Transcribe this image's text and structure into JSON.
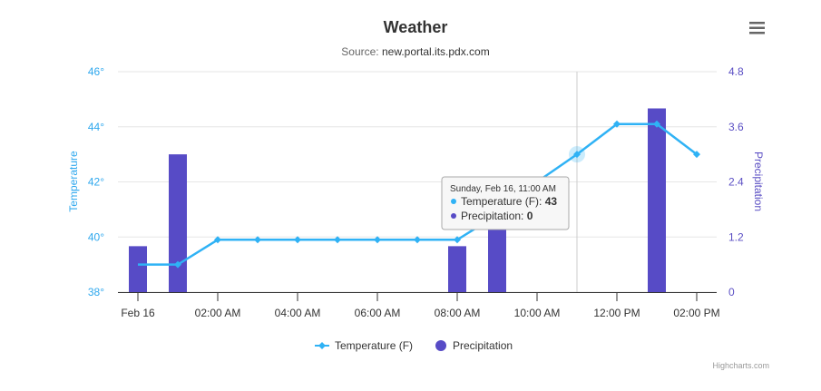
{
  "chart_data": {
    "type": "combo",
    "title": "Weather",
    "subtitle_prefix": "Source: ",
    "subtitle_source": "new.portal.its.pdx.com",
    "x": [
      "00:00",
      "01:00",
      "02:00",
      "03:00",
      "04:00",
      "05:00",
      "06:00",
      "07:00",
      "08:00",
      "09:00",
      "10:00",
      "11:00",
      "12:00",
      "13:00",
      "14:00"
    ],
    "x_tick_labels": [
      "Feb 16",
      "02:00 AM",
      "04:00 AM",
      "06:00 AM",
      "08:00 AM",
      "10:00 AM",
      "12:00 PM",
      "02:00 PM"
    ],
    "series": [
      {
        "name": "Temperature (F)",
        "type": "line",
        "axis": "left",
        "color": "#2fb2f5",
        "values": [
          39.0,
          39.0,
          39.9,
          39.9,
          39.9,
          39.9,
          39.9,
          39.9,
          39.9,
          40.8,
          42.0,
          43.0,
          44.1,
          44.1,
          43.0
        ]
      },
      {
        "name": "Precipitation",
        "type": "column",
        "axis": "right",
        "color": "#574bc6",
        "values": [
          1.0,
          3.0,
          0,
          0,
          0,
          0,
          0,
          0,
          1.0,
          1.45,
          0,
          0,
          0,
          4.0,
          0
        ]
      }
    ],
    "y_left": {
      "title": "Temperature",
      "min": 38,
      "max": 46,
      "ticks": [
        "38°",
        "40°",
        "42°",
        "44°",
        "46°"
      ]
    },
    "y_right": {
      "title": "Precipitation",
      "min": 0,
      "max": 4.8,
      "ticks": [
        "0",
        "1.2",
        "2.4",
        "3.6",
        "4.8"
      ]
    },
    "grid": true,
    "legend_position": "bottom-center",
    "tooltip": {
      "header": "Sunday, Feb 16, 11:00 AM",
      "lines": [
        {
          "label": "Temperature (F): ",
          "value": "43",
          "color": "#2fb2f5"
        },
        {
          "label": "Precipitation: ",
          "value": "0",
          "color": "#574bc6"
        }
      ]
    },
    "credits": "Highcharts.com"
  },
  "menu_icon": "hamburger-menu-icon"
}
